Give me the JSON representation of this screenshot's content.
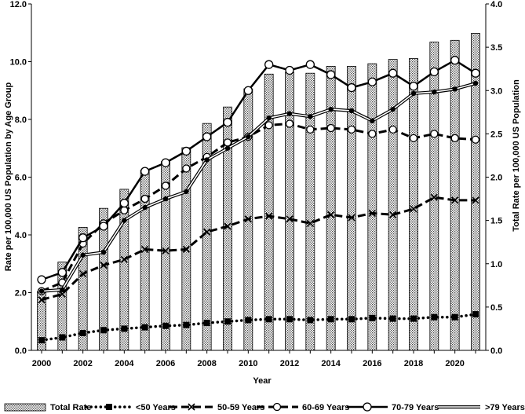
{
  "chart_data": {
    "type": "bar+line",
    "title": "",
    "xlabel": "Year",
    "ylabel_left": "Rate per 100,000 US Population by Age  Group",
    "ylabel_right": "Total Rate per 100,000 US Population",
    "ylim_left": [
      0,
      12
    ],
    "ylim_right": [
      0,
      4
    ],
    "yticks_left": [
      "0.0",
      "2.0",
      "4.0",
      "6.0",
      "8.0",
      "10.0",
      "12.0"
    ],
    "yticks_right": [
      "0.0",
      "0.5",
      "1.0",
      "1.5",
      "2.0",
      "2.5",
      "3.0",
      "3.5",
      "4.0"
    ],
    "x": [
      2000,
      2001,
      2002,
      2003,
      2004,
      2005,
      2006,
      2007,
      2008,
      2009,
      2010,
      2011,
      2012,
      2013,
      2014,
      2015,
      2016,
      2017,
      2018,
      2019,
      2020,
      2021
    ],
    "xticks": [
      "2000",
      "2002",
      "2004",
      "2006",
      "2008",
      "2010",
      "2012",
      "2014",
      "2016",
      "2018",
      "2020"
    ],
    "bars": {
      "name": "Total Rate",
      "axis": "right",
      "values": [
        0.68,
        1.02,
        1.42,
        1.64,
        1.86,
        2.08,
        2.18,
        2.34,
        2.62,
        2.81,
        3.02,
        3.19,
        3.21,
        3.2,
        3.28,
        3.28,
        3.31,
        3.36,
        3.37,
        3.56,
        3.58,
        3.66
      ]
    },
    "series": [
      {
        "name": "<50 Years",
        "axis": "left",
        "style": "dotted-square",
        "values": [
          0.35,
          0.45,
          0.6,
          0.7,
          0.75,
          0.8,
          0.85,
          0.88,
          0.95,
          1.0,
          1.05,
          1.08,
          1.08,
          1.05,
          1.08,
          1.08,
          1.12,
          1.1,
          1.1,
          1.15,
          1.15,
          1.25
        ]
      },
      {
        "name": "50-59 Years",
        "axis": "left",
        "style": "dashed-x",
        "values": [
          1.75,
          1.95,
          2.65,
          2.95,
          3.15,
          3.5,
          3.45,
          3.5,
          4.1,
          4.3,
          4.55,
          4.65,
          4.55,
          4.4,
          4.7,
          4.6,
          4.75,
          4.7,
          4.9,
          5.3,
          5.2,
          5.2
        ]
      },
      {
        "name": "60-69 Years",
        "axis": "left",
        "style": "dashed-circle",
        "values": [
          2.05,
          2.35,
          3.7,
          4.4,
          4.85,
          5.25,
          5.7,
          6.3,
          6.7,
          7.2,
          7.4,
          7.8,
          7.85,
          7.65,
          7.7,
          7.65,
          7.5,
          7.65,
          7.35,
          7.5,
          7.35,
          7.3
        ]
      },
      {
        "name": "70-79 Years",
        "axis": "left",
        "style": "solid-circle",
        "values": [
          2.45,
          2.7,
          3.9,
          4.3,
          5.1,
          6.2,
          6.5,
          6.9,
          7.4,
          7.9,
          9.0,
          9.9,
          9.7,
          9.9,
          9.55,
          9.1,
          9.3,
          9.6,
          9.15,
          9.65,
          10.05,
          9.6
        ]
      },
      {
        "name": ">79 Years",
        "axis": "left",
        "style": "double-dot",
        "values": [
          2.05,
          2.1,
          3.3,
          3.4,
          4.5,
          4.95,
          5.25,
          5.5,
          6.6,
          7.0,
          7.4,
          8.05,
          8.2,
          8.1,
          8.35,
          8.3,
          7.95,
          8.35,
          8.9,
          8.95,
          9.05,
          9.25
        ]
      }
    ]
  }
}
